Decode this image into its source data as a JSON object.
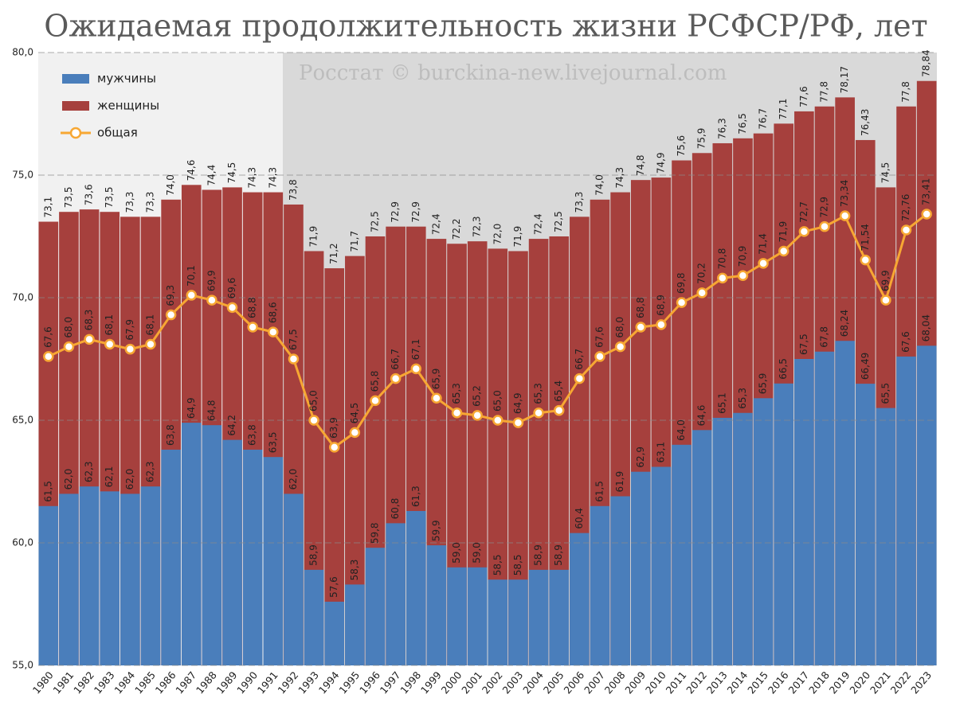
{
  "chart_data": {
    "type": "bar",
    "title": "Ожидаемая продолжительность жизни РСФСР/РФ, лет",
    "annotation": "Росстат © burckina-new.livejournal.com",
    "categories": [
      "1980",
      "1981",
      "1982",
      "1983",
      "1984",
      "1985",
      "1986",
      "1987",
      "1988",
      "1989",
      "1990",
      "1991",
      "1992",
      "1993",
      "1994",
      "1995",
      "1996",
      "1997",
      "1998",
      "1999",
      "2000",
      "2001",
      "2002",
      "2003",
      "2004",
      "2005",
      "2006",
      "2007",
      "2008",
      "2009",
      "2010",
      "2011",
      "2012",
      "2013",
      "2014",
      "2015",
      "2016",
      "2017",
      "2018",
      "2019",
      "2020",
      "2021",
      "2022",
      "2023"
    ],
    "series": [
      {
        "name": "женщины",
        "color": "#a6403d",
        "mark": "bar",
        "values": [
          73.1,
          73.5,
          73.6,
          73.5,
          73.3,
          73.3,
          74.0,
          74.6,
          74.4,
          74.5,
          74.3,
          74.3,
          73.8,
          71.9,
          71.2,
          71.7,
          72.5,
          72.9,
          72.9,
          72.4,
          72.2,
          72.3,
          72.0,
          71.9,
          72.4,
          72.5,
          73.3,
          74.0,
          74.3,
          74.8,
          74.9,
          75.6,
          75.9,
          76.3,
          76.5,
          76.7,
          77.1,
          77.6,
          77.8,
          78.17,
          76.43,
          74.5,
          77.8,
          78.84
        ],
        "value_labels": [
          "73,1",
          "73,5",
          "73,6",
          "73,5",
          "73,3",
          "73,3",
          "74,0",
          "74,6",
          "74,4",
          "74,5",
          "74,3",
          "74,3",
          "73,8",
          "71,9",
          "71,2",
          "71,7",
          "72,5",
          "72,9",
          "72,9",
          "72,4",
          "72,2",
          "72,3",
          "72,0",
          "71,9",
          "72,4",
          "72,5",
          "73,3",
          "74,0",
          "74,3",
          "74,8",
          "74,9",
          "75,6",
          "75,9",
          "76,3",
          "76,5",
          "76,7",
          "77,1",
          "77,6",
          "77,8",
          "78,17",
          "76,43",
          "74,5",
          "77,8",
          "78,84"
        ]
      },
      {
        "name": "мужчины",
        "color": "#4a7ebb",
        "mark": "bar",
        "values": [
          61.5,
          62.0,
          62.3,
          62.1,
          62.0,
          62.3,
          63.8,
          64.9,
          64.8,
          64.2,
          63.8,
          63.5,
          62.0,
          58.9,
          57.6,
          58.3,
          59.8,
          60.8,
          61.3,
          59.9,
          59.0,
          59.0,
          58.5,
          58.5,
          58.9,
          58.9,
          60.4,
          61.5,
          61.9,
          62.9,
          63.1,
          64.0,
          64.6,
          65.1,
          65.3,
          65.9,
          66.5,
          67.5,
          67.8,
          68.24,
          66.49,
          65.5,
          67.6,
          68.04
        ],
        "value_labels": [
          "61,5",
          "62,0",
          "62,3",
          "62,1",
          "62,0",
          "62,3",
          "63,8",
          "64,9",
          "64,8",
          "64,2",
          "63,8",
          "63,5",
          "62,0",
          "58,9",
          "57,6",
          "58,3",
          "59,8",
          "60,8",
          "61,3",
          "59,9",
          "59,0",
          "59,0",
          "58,5",
          "58,5",
          "58,9",
          "58,9",
          "60,4",
          "61,5",
          "61,9",
          "62,9",
          "63,1",
          "64,0",
          "64,6",
          "65,1",
          "65,3",
          "65,9",
          "66,5",
          "67,5",
          "67,8",
          "68,24",
          "66,49",
          "65,5",
          "67,6",
          "68,04"
        ]
      },
      {
        "name": "общая",
        "color": "#f7a733",
        "mark": "line",
        "values": [
          67.6,
          68.0,
          68.3,
          68.1,
          67.9,
          68.1,
          69.3,
          70.1,
          69.9,
          69.6,
          68.8,
          68.6,
          67.5,
          65.0,
          63.9,
          64.5,
          65.8,
          66.7,
          67.1,
          65.9,
          65.3,
          65.2,
          65.0,
          64.9,
          65.3,
          65.4,
          66.7,
          67.6,
          68.0,
          68.8,
          68.9,
          69.8,
          70.2,
          70.8,
          70.9,
          71.4,
          71.9,
          72.7,
          72.9,
          73.34,
          71.54,
          69.9,
          72.76,
          73.41
        ],
        "value_labels": [
          "67,6",
          "68,0",
          "68,3",
          "68,1",
          "67,9",
          "68,1",
          "69,3",
          "70,1",
          "69,9",
          "69,6",
          "68,8",
          "68,6",
          "67,5",
          "65,0",
          "63,9",
          "64,5",
          "65,8",
          "66,7",
          "67,1",
          "65,9",
          "65,3",
          "65,2",
          "65,0",
          "64,9",
          "65,3",
          "65,4",
          "66,7",
          "67,6",
          "68,0",
          "68,8",
          "68,9",
          "69,8",
          "70,2",
          "70,8",
          "70,9",
          "71,4",
          "71,9",
          "72,7",
          "72,9",
          "73,34",
          "71,54",
          "69,9",
          "72,76",
          "73,41"
        ]
      }
    ],
    "ylim": [
      55,
      80
    ],
    "yticks": [
      {
        "value": 55,
        "label": "55,0"
      },
      {
        "value": 60,
        "label": "60,0"
      },
      {
        "value": 65,
        "label": "65,0"
      },
      {
        "value": 70,
        "label": "70,0"
      },
      {
        "value": 75,
        "label": "75,0"
      },
      {
        "value": 80,
        "label": "80,0"
      }
    ],
    "grid": true
  }
}
